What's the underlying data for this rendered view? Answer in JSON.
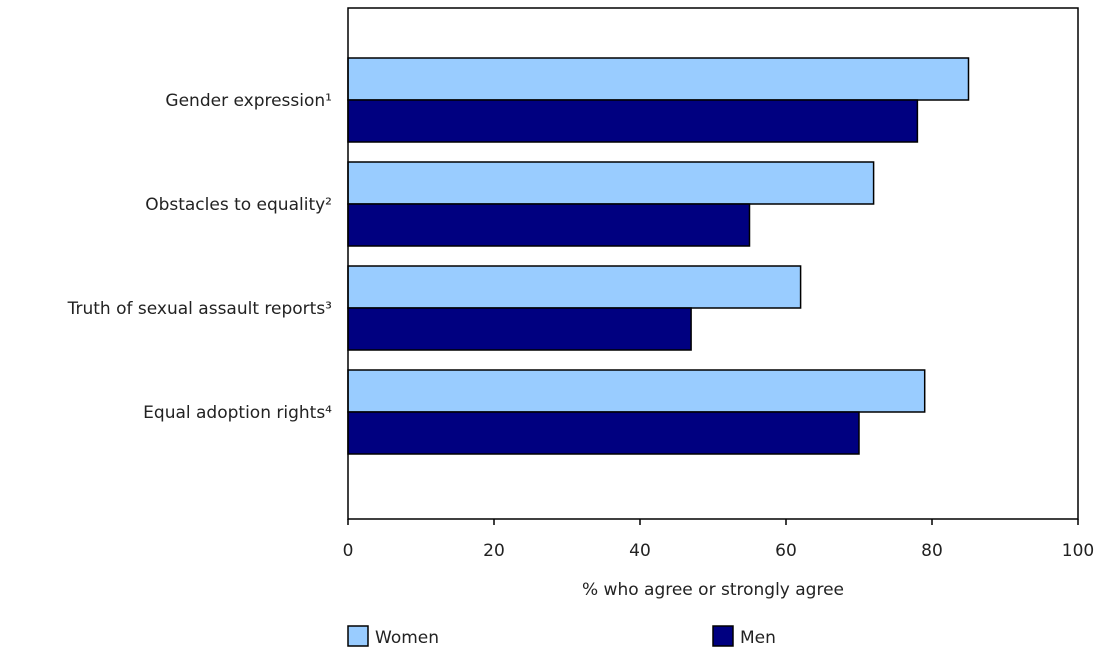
{
  "chart_data": {
    "type": "bar",
    "orientation": "horizontal",
    "categories": [
      "Gender expression¹",
      "Obstacles to equality²",
      "Truth of sexual assault reports³",
      "Equal adoption rights⁴"
    ],
    "series": [
      {
        "name": "Women",
        "values": [
          85,
          72,
          62,
          79
        ],
        "color": "#99ccff"
      },
      {
        "name": "Men",
        "values": [
          78,
          55,
          47,
          70
        ],
        "color": "#000080"
      }
    ],
    "xlabel": "% who agree or strongly agree",
    "ylabel": "",
    "xlim": [
      0,
      100
    ],
    "xticks": [
      "0",
      "20",
      "40",
      "60",
      "80",
      "100"
    ],
    "grid": false,
    "legend": "bottom"
  }
}
